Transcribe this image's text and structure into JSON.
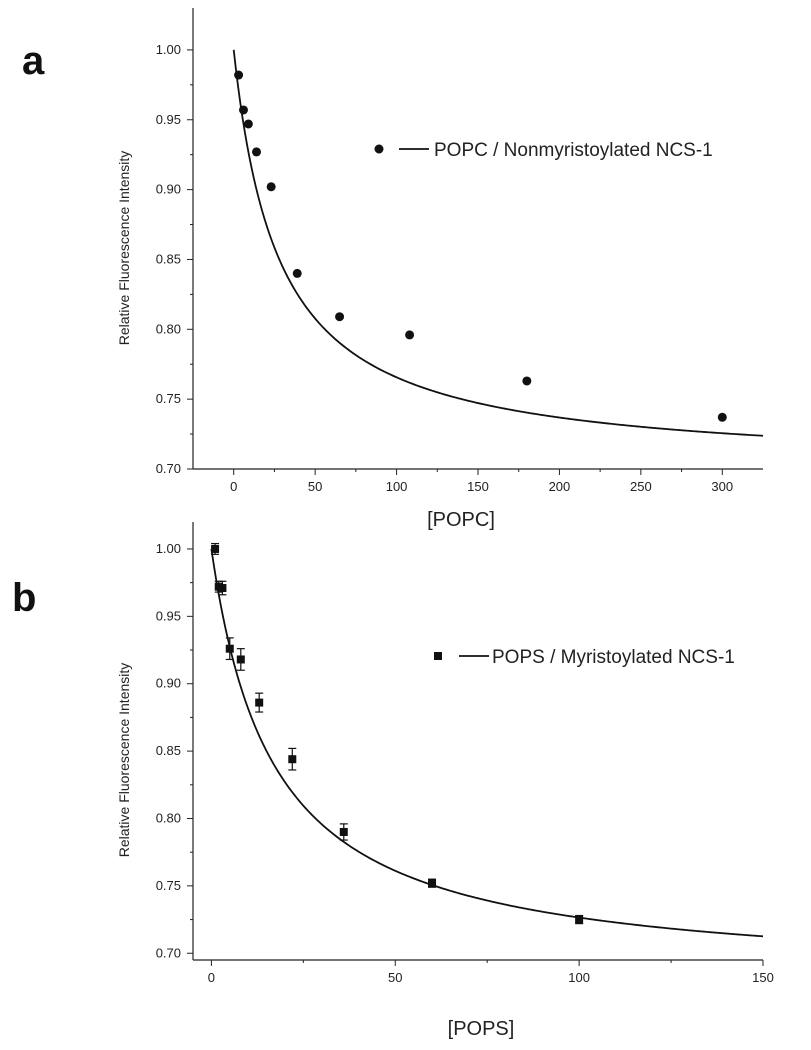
{
  "chart_data": [
    {
      "type": "scatter",
      "panel_label": "a",
      "xlabel": "[POPC]",
      "ylabel": "Relative Fluorescence Intensity",
      "xlim": [
        -25,
        325
      ],
      "ylim": [
        0.7,
        1.03
      ],
      "x_ticks": [
        0,
        50,
        100,
        150,
        200,
        250,
        300
      ],
      "y_ticks": [
        0.7,
        0.75,
        0.8,
        0.85,
        0.9,
        0.95,
        1.0
      ],
      "x_tick_labels": [
        "0",
        "50",
        "100",
        "150",
        "200",
        "250",
        "300"
      ],
      "y_tick_labels": [
        "0.70",
        "0.75",
        "0.80",
        "0.85",
        "0.90",
        "0.95",
        "1.00"
      ],
      "legend_position": "top-right",
      "series": [
        {
          "name": "POPC / Nonmyristoylated NCS-1",
          "marker": "circle",
          "x": [
            3,
            6,
            9,
            14,
            23,
            39,
            65,
            108,
            180,
            300
          ],
          "y": [
            0.982,
            0.957,
            0.947,
            0.927,
            0.902,
            0.84,
            0.809,
            0.796,
            0.763,
            0.737
          ],
          "fit": {
            "model": "binding",
            "y0": 1.0,
            "amplitude": 0.3,
            "k": 28
          }
        }
      ]
    },
    {
      "type": "scatter",
      "panel_label": "b",
      "xlabel": "[POPS]",
      "ylabel": "Relative Fluorescence Intensity",
      "xlim": [
        -5,
        150
      ],
      "ylim": [
        0.695,
        1.02
      ],
      "x_ticks": [
        0,
        50,
        100,
        150
      ],
      "y_ticks": [
        0.7,
        0.75,
        0.8,
        0.85,
        0.9,
        0.95,
        1.0
      ],
      "x_tick_labels": [
        "0",
        "50",
        "100",
        "150"
      ],
      "y_tick_labels": [
        "0.70",
        "0.75",
        "0.80",
        "0.85",
        "0.90",
        "0.95",
        "1.00"
      ],
      "legend_position": "top-right",
      "series": [
        {
          "name": "POPS / Myristoylated NCS-1",
          "marker": "square",
          "x": [
            1,
            2,
            3,
            5,
            8,
            13,
            22,
            36,
            60,
            100
          ],
          "y": [
            1.0,
            0.972,
            0.971,
            0.926,
            0.918,
            0.886,
            0.844,
            0.79,
            0.752,
            0.725
          ],
          "y_err": [
            0.004,
            0.004,
            0.005,
            0.008,
            0.008,
            0.007,
            0.008,
            0.006,
            0.003,
            0.003
          ],
          "fit": {
            "model": "binding",
            "y0": 1.0,
            "amplitude": 0.32,
            "k": 17
          }
        }
      ]
    }
  ]
}
